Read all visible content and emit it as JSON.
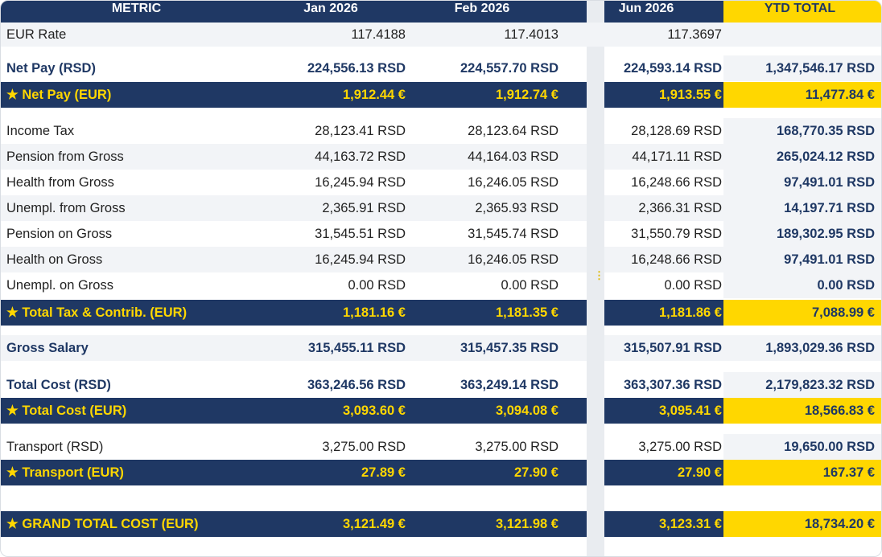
{
  "header": {
    "metric": "METRIC",
    "jan": "Jan 2026",
    "feb": "Feb 2026",
    "jun": "Jun 2026",
    "ytd": "YTD TOTAL"
  },
  "rows": {
    "eur_rate": {
      "label": "EUR Rate",
      "jan": "117.4188",
      "feb": "117.4013",
      "jun": "117.3697",
      "ytd": ""
    },
    "net_pay_rsd": {
      "label": "Net Pay (RSD)",
      "jan": "224,556.13 RSD",
      "feb": "224,557.70 RSD",
      "jun": "224,593.14 RSD",
      "ytd": "1,347,546.17 RSD"
    },
    "net_pay_eur": {
      "label": "★ Net Pay (EUR)",
      "jan": "1,912.44 €",
      "feb": "1,912.74 €",
      "jun": "1,913.55 €",
      "ytd": "11,477.84 €"
    },
    "income_tax": {
      "label": "Income Tax",
      "jan": "28,123.41 RSD",
      "feb": "28,123.64 RSD",
      "jun": "28,128.69 RSD",
      "ytd": "168,770.35 RSD"
    },
    "pension_from_gross": {
      "label": "Pension from Gross",
      "jan": "44,163.72 RSD",
      "feb": "44,164.03 RSD",
      "jun": "44,171.11 RSD",
      "ytd": "265,024.12 RSD"
    },
    "health_from_gross": {
      "label": "Health from Gross",
      "jan": "16,245.94 RSD",
      "feb": "16,246.05 RSD",
      "jun": "16,248.66 RSD",
      "ytd": "97,491.01 RSD"
    },
    "unempl_from_gross": {
      "label": "Unempl. from Gross",
      "jan": "2,365.91 RSD",
      "feb": "2,365.93 RSD",
      "jun": "2,366.31 RSD",
      "ytd": "14,197.71 RSD"
    },
    "pension_on_gross": {
      "label": "Pension on Gross",
      "jan": "31,545.51 RSD",
      "feb": "31,545.74 RSD",
      "jun": "31,550.79 RSD",
      "ytd": "189,302.95 RSD"
    },
    "health_on_gross": {
      "label": "Health on Gross",
      "jan": "16,245.94 RSD",
      "feb": "16,246.05 RSD",
      "jun": "16,248.66 RSD",
      "ytd": "97,491.01 RSD"
    },
    "unempl_on_gross": {
      "label": "Unempl. on Gross",
      "jan": "0.00 RSD",
      "feb": "0.00 RSD",
      "jun": "0.00 RSD",
      "ytd": "0.00 RSD"
    },
    "total_tax_eur": {
      "label": "★ Total Tax & Contrib. (EUR)",
      "jan": "1,181.16 €",
      "feb": "1,181.35 €",
      "jun": "1,181.86 €",
      "ytd": "7,088.99 €"
    },
    "gross_salary": {
      "label": "Gross Salary",
      "jan": "315,455.11 RSD",
      "feb": "315,457.35 RSD",
      "jun": "315,507.91 RSD",
      "ytd": "1,893,029.36 RSD"
    },
    "total_cost_rsd": {
      "label": "Total Cost (RSD)",
      "jan": "363,246.56 RSD",
      "feb": "363,249.14 RSD",
      "jun": "363,307.36 RSD",
      "ytd": "2,179,823.32 RSD"
    },
    "total_cost_eur": {
      "label": "★ Total Cost (EUR)",
      "jan": "3,093.60 €",
      "feb": "3,094.08 €",
      "jun": "3,095.41 €",
      "ytd": "18,566.83 €"
    },
    "transport_rsd": {
      "label": "Transport (RSD)",
      "jan": "3,275.00 RSD",
      "feb": "3,275.00 RSD",
      "jun": "3,275.00 RSD",
      "ytd": "19,650.00 RSD"
    },
    "transport_eur": {
      "label": "★ Transport (EUR)",
      "jan": "27.89 €",
      "feb": "27.90 €",
      "jun": "27.90 €",
      "ytd": "167.37 €"
    },
    "grand_total_eur": {
      "label": "★ GRAND TOTAL COST (EUR)",
      "jan": "3,121.49 €",
      "feb": "3,121.98 €",
      "jun": "3,123.31 €",
      "ytd": "18,734.20 €"
    }
  },
  "colors": {
    "navy": "#1f3864",
    "gold": "#ffd700",
    "zebra": "#f2f4f7"
  },
  "splitter": {
    "icon": "drag-handle-icon",
    "glyph": "⋮"
  }
}
